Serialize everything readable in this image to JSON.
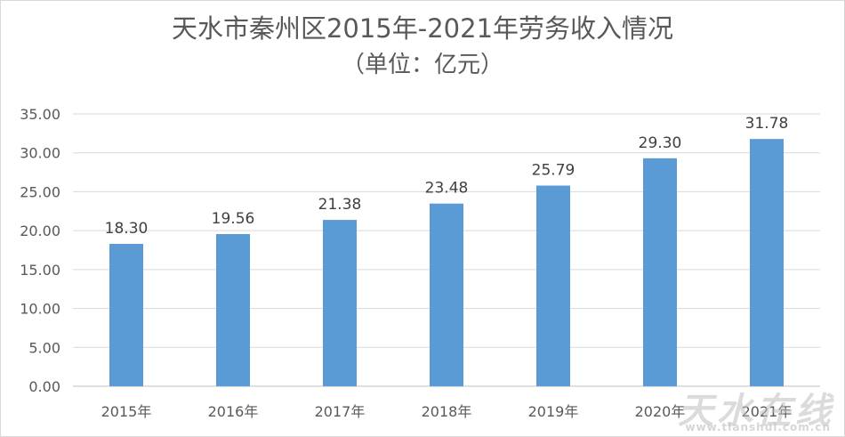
{
  "chart_data": {
    "type": "bar",
    "title": "天水市秦州区2015年-2021年劳务收入情况",
    "subtitle": "（单位：亿元）",
    "categories": [
      "2015年",
      "2016年",
      "2017年",
      "2018年",
      "2019年",
      "2020年",
      "2021年"
    ],
    "values": [
      18.3,
      19.56,
      21.38,
      23.48,
      25.79,
      29.3,
      31.78
    ],
    "data_labels": [
      "18.30",
      "19.56",
      "21.38",
      "23.48",
      "25.79",
      "29.30",
      "31.78"
    ],
    "yticks": [
      "0.00",
      "5.00",
      "10.00",
      "15.00",
      "20.00",
      "25.00",
      "30.00",
      "35.00"
    ],
    "ylim": [
      0,
      35
    ],
    "grid": true,
    "bar_color": "#5b9bd5"
  },
  "watermark": {
    "main": "天水在线",
    "url": "www.tianshui.com.cn"
  }
}
